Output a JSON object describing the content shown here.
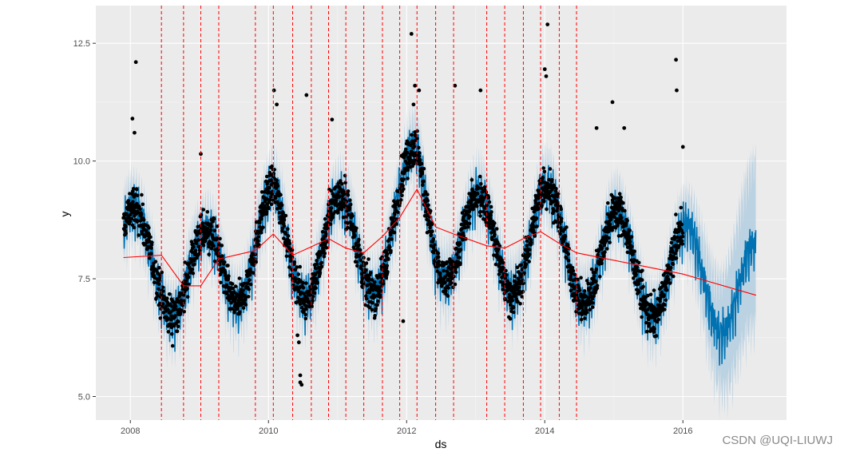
{
  "chart_data": {
    "type": "scatter",
    "xlabel": "ds",
    "ylabel": "y",
    "xlim": [
      2007.5,
      2017.5
    ],
    "ylim": [
      4.5,
      13.3
    ],
    "x_ticks": [
      2008,
      2010,
      2012,
      2014,
      2016
    ],
    "x_tick_labels": [
      "2008",
      "2010",
      "2012",
      "2014",
      "2016"
    ],
    "y_ticks": [
      5.0,
      7.5,
      10.0,
      12.5
    ],
    "y_tick_labels": [
      "5.0",
      "7.5",
      "10.0",
      "12.5"
    ],
    "grid": true,
    "changepoints": [
      2008.45,
      2008.77,
      2009.02,
      2009.28,
      2009.81,
      2010.07,
      2010.35,
      2010.62,
      2010.87,
      2011.12,
      2011.38,
      2011.65,
      2011.9,
      2012.15,
      2012.42,
      2012.68,
      2013.16,
      2013.42,
      2013.69,
      2013.94,
      2014.21,
      2014.46
    ],
    "trend": {
      "x": [
        2007.9,
        2008.45,
        2008.77,
        2009.02,
        2009.28,
        2009.81,
        2010.07,
        2010.35,
        2010.62,
        2010.87,
        2011.12,
        2011.38,
        2011.65,
        2011.9,
        2012.15,
        2012.42,
        2012.68,
        2013.16,
        2013.42,
        2013.69,
        2013.94,
        2014.21,
        2014.46,
        2016.0,
        2017.06
      ],
      "y": [
        7.95,
        8.0,
        7.35,
        7.35,
        7.92,
        8.1,
        8.45,
        8.0,
        8.18,
        8.35,
        8.15,
        8.05,
        8.4,
        8.8,
        9.4,
        8.6,
        8.45,
        8.2,
        8.15,
        8.35,
        8.5,
        8.25,
        8.05,
        7.6,
        7.15
      ]
    },
    "season": {
      "amplitude": 1.05,
      "peak": 0.05
    },
    "history_end": 2016.0,
    "forecast_end": 2017.06,
    "outliers": [
      {
        "x": 2008.08,
        "y": 12.1
      },
      {
        "x": 2008.03,
        "y": 10.9
      },
      {
        "x": 2008.06,
        "y": 10.6
      },
      {
        "x": 2009.02,
        "y": 10.15
      },
      {
        "x": 2010.08,
        "y": 11.5
      },
      {
        "x": 2010.12,
        "y": 11.2
      },
      {
        "x": 2010.55,
        "y": 11.4
      },
      {
        "x": 2010.92,
        "y": 10.88
      },
      {
        "x": 2010.42,
        "y": 6.3
      },
      {
        "x": 2010.44,
        "y": 6.15
      },
      {
        "x": 2010.46,
        "y": 5.45
      },
      {
        "x": 2010.46,
        "y": 5.3
      },
      {
        "x": 2010.48,
        "y": 5.25
      },
      {
        "x": 2011.95,
        "y": 6.6
      },
      {
        "x": 2012.07,
        "y": 12.7
      },
      {
        "x": 2012.12,
        "y": 11.6
      },
      {
        "x": 2012.18,
        "y": 11.5
      },
      {
        "x": 2012.1,
        "y": 11.2
      },
      {
        "x": 2012.7,
        "y": 11.6
      },
      {
        "x": 2013.07,
        "y": 11.5
      },
      {
        "x": 2013.5,
        "y": 6.65
      },
      {
        "x": 2014.04,
        "y": 12.9
      },
      {
        "x": 2014.0,
        "y": 11.95
      },
      {
        "x": 2014.02,
        "y": 11.8
      },
      {
        "x": 2014.98,
        "y": 11.25
      },
      {
        "x": 2014.75,
        "y": 10.7
      },
      {
        "x": 2015.15,
        "y": 10.7
      },
      {
        "x": 2015.9,
        "y": 12.15
      },
      {
        "x": 2015.91,
        "y": 11.5
      },
      {
        "x": 2016.0,
        "y": 10.3
      }
    ],
    "watermark": "CSDN @UQI-LIUWJ"
  }
}
